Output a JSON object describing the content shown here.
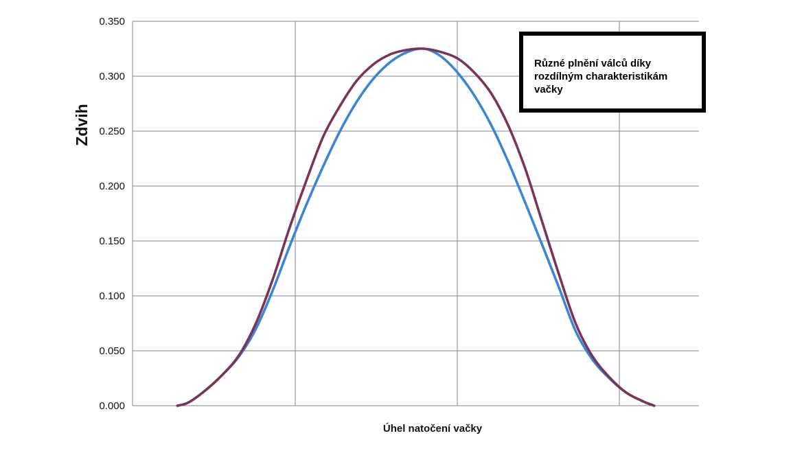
{
  "chart_data": {
    "type": "line",
    "title": "",
    "xlabel": "Úhel natočení vačky",
    "ylabel": "Zdvih",
    "ylim": [
      0,
      0.35
    ],
    "yticks": [
      "0.000",
      "0.050",
      "0.100",
      "0.150",
      "0.200",
      "0.250",
      "0.300",
      "0.350"
    ],
    "grid": true,
    "annotation": "Různé plnění válců díky rozdílným charakteristikám vačky",
    "series_colors": [
      "#3a86d6",
      "#7b3458"
    ],
    "series": [
      {
        "values": [
          [
            0.0,
            0.0
          ],
          [
            0.02,
            0.003
          ],
          [
            0.05,
            0.014
          ],
          [
            0.08,
            0.028
          ],
          [
            0.11,
            0.045
          ],
          [
            0.14,
            0.07
          ],
          [
            0.17,
            0.105
          ],
          [
            0.2,
            0.145
          ],
          [
            0.23,
            0.183
          ],
          [
            0.26,
            0.218
          ],
          [
            0.29,
            0.25
          ],
          [
            0.32,
            0.277
          ],
          [
            0.35,
            0.298
          ],
          [
            0.38,
            0.313
          ],
          [
            0.41,
            0.322
          ],
          [
            0.44,
            0.325
          ],
          [
            0.47,
            0.318
          ],
          [
            0.5,
            0.303
          ],
          [
            0.53,
            0.282
          ],
          [
            0.56,
            0.255
          ],
          [
            0.59,
            0.222
          ],
          [
            0.62,
            0.185
          ],
          [
            0.65,
            0.147
          ],
          [
            0.68,
            0.108
          ],
          [
            0.71,
            0.068
          ],
          [
            0.74,
            0.042
          ],
          [
            0.77,
            0.025
          ],
          [
            0.8,
            0.012
          ],
          [
            0.83,
            0.004
          ],
          [
            0.85,
            0.0
          ]
        ]
      },
      {
        "values": [
          [
            0.0,
            0.0
          ],
          [
            0.02,
            0.003
          ],
          [
            0.05,
            0.014
          ],
          [
            0.08,
            0.028
          ],
          [
            0.11,
            0.046
          ],
          [
            0.14,
            0.075
          ],
          [
            0.17,
            0.115
          ],
          [
            0.2,
            0.162
          ],
          [
            0.23,
            0.205
          ],
          [
            0.26,
            0.245
          ],
          [
            0.29,
            0.273
          ],
          [
            0.32,
            0.296
          ],
          [
            0.35,
            0.311
          ],
          [
            0.38,
            0.32
          ],
          [
            0.41,
            0.324
          ],
          [
            0.44,
            0.325
          ],
          [
            0.47,
            0.322
          ],
          [
            0.5,
            0.316
          ],
          [
            0.53,
            0.303
          ],
          [
            0.56,
            0.284
          ],
          [
            0.59,
            0.255
          ],
          [
            0.62,
            0.216
          ],
          [
            0.65,
            0.168
          ],
          [
            0.68,
            0.12
          ],
          [
            0.71,
            0.075
          ],
          [
            0.74,
            0.045
          ],
          [
            0.77,
            0.026
          ],
          [
            0.8,
            0.012
          ],
          [
            0.83,
            0.004
          ],
          [
            0.85,
            0.0
          ]
        ]
      }
    ]
  }
}
